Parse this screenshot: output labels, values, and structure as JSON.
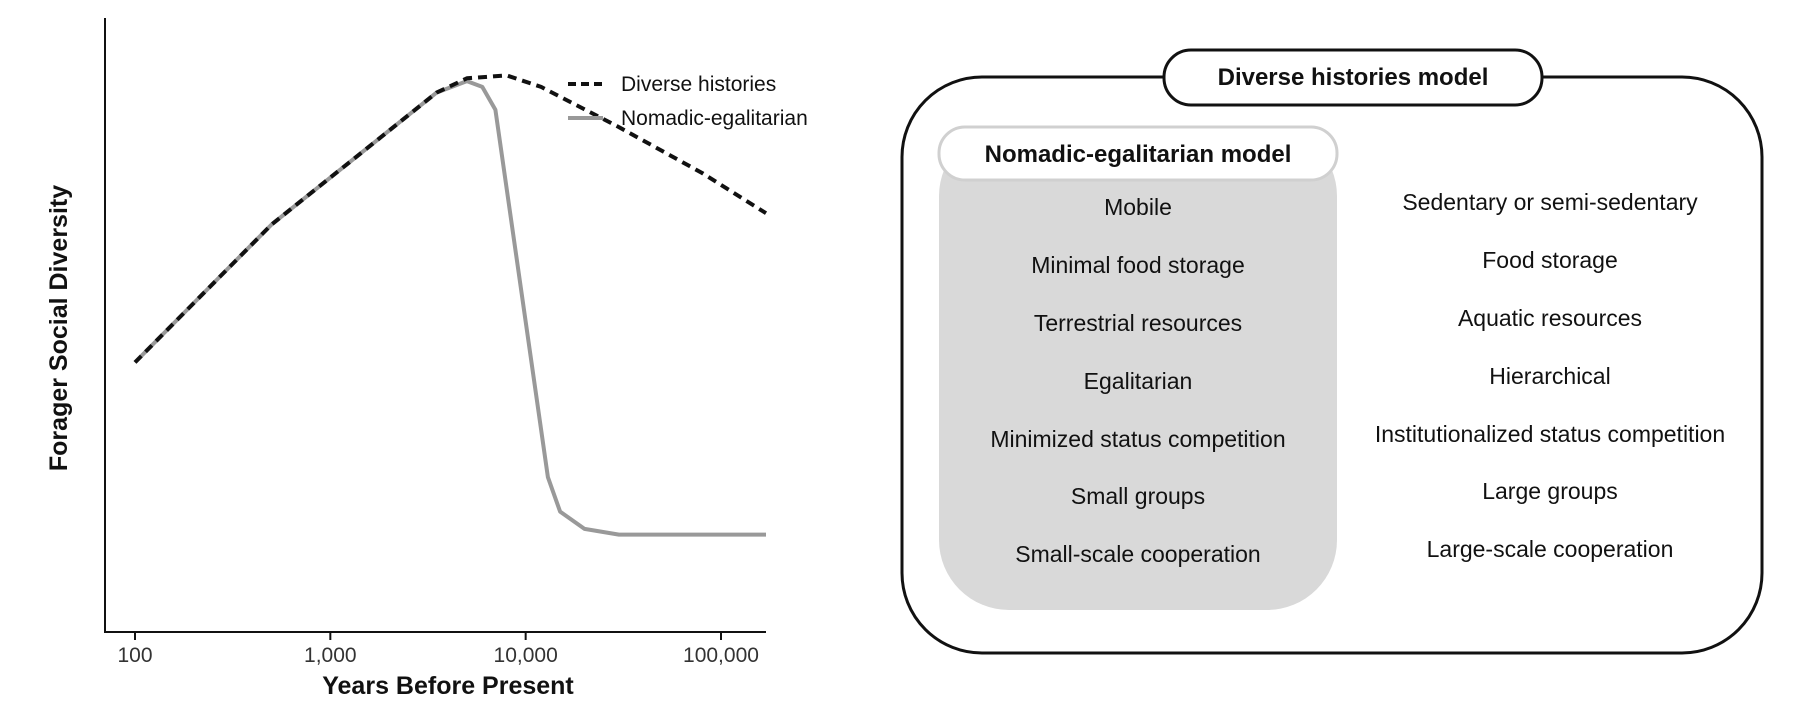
{
  "chart_data": {
    "type": "line",
    "xlabel": "Years Before Present",
    "ylabel": "Forager Social Diversity",
    "xscale": "log",
    "xlim": [
      100,
      170000
    ],
    "ylim": [
      0,
      100
    ],
    "x_ticks": [
      100,
      1000,
      10000,
      100000
    ],
    "x_tick_labels": [
      "100",
      "1,000",
      "10,000",
      "100,000"
    ],
    "legend_position": "top-right",
    "series": [
      {
        "name": "Diverse histories",
        "style": "dashed",
        "color": "#111111",
        "x": [
          100,
          500,
          3500,
          5000,
          8000,
          12000,
          30000,
          80000,
          170000
        ],
        "y": [
          40,
          64,
          87,
          89.5,
          90,
          88,
          81,
          73,
          66
        ]
      },
      {
        "name": "Nomadic-egalitarian",
        "style": "solid",
        "color": "#999999",
        "x": [
          100,
          500,
          3500,
          5000,
          6000,
          7000,
          13000,
          15000,
          20000,
          30000,
          170000
        ],
        "y": [
          40,
          64,
          87,
          89,
          88,
          84,
          20,
          14,
          11,
          10,
          10
        ]
      }
    ]
  },
  "models": {
    "diverse": {
      "title": "Diverse histories model",
      "traits": [
        "Sedentary or semi-sedentary",
        "Food storage",
        "Aquatic resources",
        "Hierarchical",
        "Institutionalized status competition",
        "Large groups",
        "Large-scale cooperation"
      ]
    },
    "nomadic": {
      "title": "Nomadic-egalitarian model",
      "traits": [
        "Mobile",
        "Minimal food storage",
        "Terrestrial resources",
        "Egalitarian",
        "Minimized status competition",
        "Small groups",
        "Small-scale cooperation"
      ]
    }
  }
}
